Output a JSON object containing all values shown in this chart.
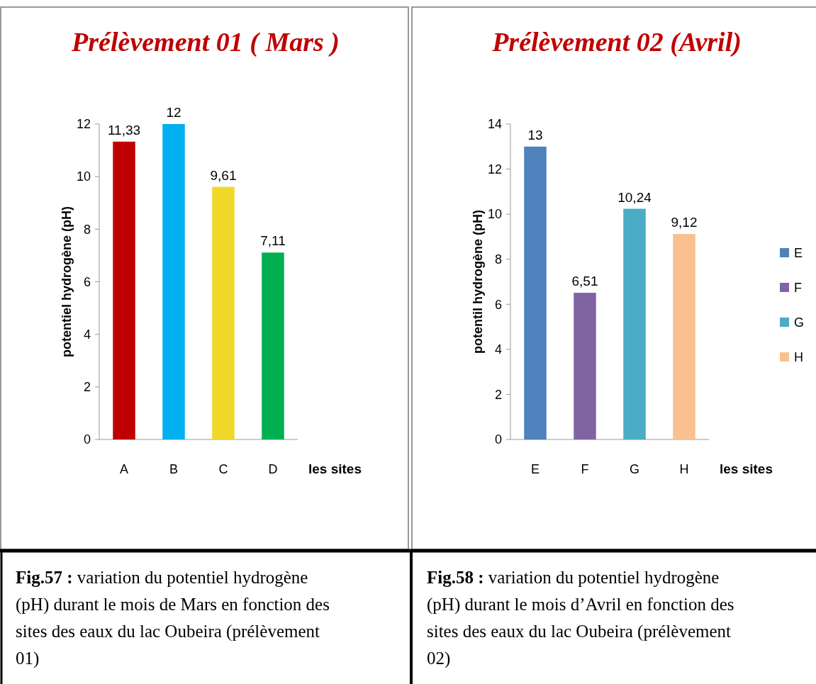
{
  "chart_data": [
    {
      "type": "bar",
      "title": "Prélèvement 01 ( Mars )",
      "xlabel": "les sites",
      "ylabel": "potentiel hydrogène (pH)",
      "categories": [
        "A",
        "B",
        "C",
        "D"
      ],
      "values": [
        11.33,
        12,
        9.61,
        7.11
      ],
      "colors": [
        "#c00000",
        "#00b0f0",
        "#f0d828",
        "#00b050"
      ],
      "value_labels": [
        "11,33",
        "12",
        "9,61",
        "7,11"
      ],
      "ylim": [
        0,
        12
      ],
      "yticks": [
        0,
        2,
        4,
        6,
        8,
        10,
        12
      ],
      "grid": false,
      "legend": false,
      "annotations": [
        "Fig.57 : variation du potentiel hydrogène (pH) durant le mois de Mars en fonction des sites des eaux du lac Oubeira (prélèvement 01)"
      ]
    },
    {
      "type": "bar",
      "title": "Prélèvement 02 (Avril)",
      "xlabel": "les sites",
      "ylabel": "potentil hydrogène (pH)",
      "categories": [
        "E",
        "F",
        "G",
        "H"
      ],
      "series": [
        {
          "name": "E",
          "color": "#4f81bd",
          "values": [
            13,
            null,
            null,
            null
          ],
          "value_labels": [
            "13",
            null,
            null,
            null
          ]
        },
        {
          "name": "F",
          "color": "#8064a2",
          "values": [
            null,
            6.51,
            null,
            null
          ],
          "value_labels": [
            null,
            "6,51",
            null,
            null
          ]
        },
        {
          "name": "G",
          "color": "#4bacc6",
          "values": [
            null,
            null,
            10.24,
            null
          ],
          "value_labels": [
            null,
            null,
            "10,24",
            null
          ]
        },
        {
          "name": "H",
          "color": "#fac090",
          "values": [
            null,
            null,
            null,
            9.12
          ],
          "value_labels": [
            null,
            null,
            null,
            "9,12"
          ]
        }
      ],
      "ylim": [
        0,
        14
      ],
      "yticks": [
        0,
        2,
        4,
        6,
        8,
        10,
        12,
        14
      ],
      "grid": false,
      "legend": "right",
      "annotations": [
        "Fig.58 : variation du potentiel hydrogène (pH) durant le mois d’Avril en fonction des sites des eaux du lac Oubeira (prélèvement 02)"
      ]
    }
  ]
}
